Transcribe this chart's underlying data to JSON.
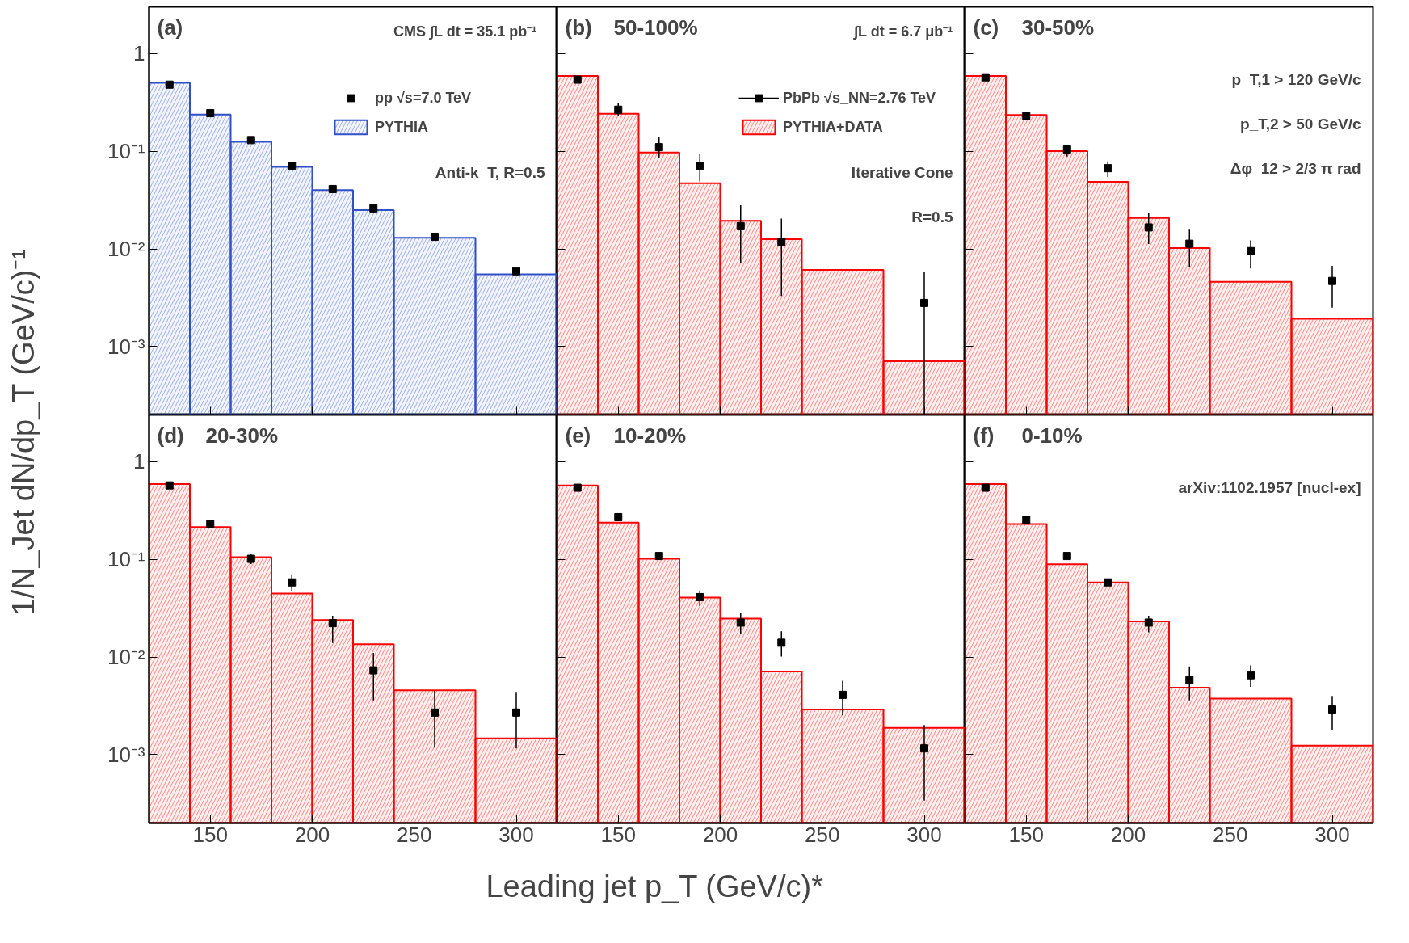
{
  "chart_data": [
    {
      "type": "histogram",
      "title": "(a)",
      "ylabel": "1/N_Jet dN/dp_T (GeV/c)⁻¹",
      "annotations": [
        "CMS   ∫L dt = 35.1 pb⁻¹",
        "Anti-k_T, R=0.5"
      ],
      "bins": [
        120,
        140,
        160,
        180,
        200,
        220,
        240,
        280,
        320
      ],
      "x": [
        130,
        150,
        170,
        190,
        210,
        230,
        260,
        300
      ],
      "series": [
        {
          "name": "pp √s=7.0 TeV",
          "type": "scatter",
          "color": "#000000",
          "values": [
            0.48,
            0.245,
            0.13,
            0.071,
            0.041,
            0.026,
            0.0133,
            0.0059
          ]
        },
        {
          "name": "PYTHIA",
          "color": "#3050c8",
          "values": [
            0.5,
            0.237,
            0.125,
            0.069,
            0.04,
            0.025,
            0.013,
            0.0055
          ]
        }
      ],
      "xlim": [
        120,
        320
      ],
      "ylim": [
        0.0002,
        3
      ],
      "xticks": [
        {
          "value": 150,
          "label": null
        },
        {
          "value": 200,
          "label": null
        },
        {
          "value": 250,
          "label": null
        },
        {
          "value": 300,
          "label": null
        }
      ],
      "yticks": [
        {
          "value": 0.001,
          "label": "10⁻³"
        },
        {
          "value": 0.01,
          "label": "10⁻²"
        },
        {
          "value": 0.1,
          "label": "10⁻¹"
        },
        1
      ],
      "log": true,
      "marker": "square",
      "legend": "top right",
      "tick_labels": "y"
    },
    {
      "type": "histogram",
      "title": "(b)",
      "subtitle": "50-100%",
      "annotations": [
        "∫L dt = 6.7 μb⁻¹",
        "Iterative Cone",
        "R=0.5"
      ],
      "bins": [
        120,
        140,
        160,
        180,
        200,
        220,
        240,
        280,
        320
      ],
      "x": [
        130,
        150,
        170,
        190,
        210,
        230,
        260,
        300
      ],
      "series": [
        {
          "name": "PbPb √s_NN=2.76 TeV",
          "type": "scatter",
          "color": "#000000",
          "values": [
            0.54,
            0.266,
            0.11,
            0.071,
            0.0171,
            0.0118,
            null,
            0.0028
          ],
          "errors": [
            null,
            [
              0.23,
              0.31
            ],
            [
              0.085,
              0.14
            ],
            [
              0.049,
              0.093
            ],
            [
              0.0072,
              0.028
            ],
            [
              0.0033,
              0.0204
            ],
            null,
            [
              0.0002,
              0.0058
            ]
          ]
        },
        {
          "name": "PYTHIA+DATA",
          "color": "#ff0000",
          "values": [
            0.59,
            0.242,
            0.097,
            0.047,
            0.0194,
            0.0126,
            0.0061,
            0.00071
          ]
        }
      ],
      "xlim": [
        120,
        320
      ],
      "ylim": [
        0.0002,
        3
      ],
      "xticks": [
        {
          "value": 150,
          "label": null
        },
        {
          "value": 200,
          "label": null
        },
        {
          "value": 250,
          "label": null
        },
        {
          "value": 300,
          "label": null
        }
      ],
      "yticks": [
        {
          "value": 0.001,
          "label": null
        },
        {
          "value": 0.01,
          "label": null
        },
        {
          "value": 0.1,
          "label": null
        },
        {
          "value": 1,
          "label": null
        }
      ],
      "log": true,
      "marker": "square",
      "legend": "top right",
      "tick_labels": false
    },
    {
      "type": "histogram",
      "title": "(c)",
      "subtitle": "30-50%",
      "annotations": [
        "p_T,1 > 120 GeV/c",
        "p_T,2 > 50 GeV/c",
        "Δφ_12 > 2/3 π rad"
      ],
      "bins": [
        120,
        140,
        160,
        180,
        200,
        220,
        240,
        280,
        320
      ],
      "x": [
        130,
        150,
        170,
        190,
        210,
        230,
        260,
        300
      ],
      "series": [
        {
          "type": "scatter",
          "color": "#000000",
          "values": [
            0.57,
            0.23,
            0.104,
            0.067,
            0.0166,
            0.0113,
            0.0095,
            0.0047
          ],
          "errors": [
            null,
            null,
            [
              0.088,
              0.117
            ],
            [
              0.0546,
              0.079
            ],
            [
              0.0112,
              0.0231
            ],
            [
              0.0065,
              0.0157
            ],
            [
              0.0063,
              0.0122
            ],
            [
              0.0025,
              0.0067
            ]
          ]
        },
        {
          "color": "#ff0000",
          "values": [
            0.59,
            0.235,
            0.1,
            0.0486,
            0.0207,
            0.0102,
            0.0046,
            0.00193
          ]
        }
      ],
      "xlim": [
        120,
        320
      ],
      "ylim": [
        0.0002,
        3
      ],
      "xticks": [
        {
          "value": 150,
          "label": null
        },
        {
          "value": 200,
          "label": null
        },
        {
          "value": 250,
          "label": null
        },
        {
          "value": 300,
          "label": null
        }
      ],
      "yticks": [
        {
          "value": 0.001,
          "label": null
        },
        {
          "value": 0.01,
          "label": null
        },
        {
          "value": 0.1,
          "label": null
        },
        {
          "value": 1,
          "label": null
        }
      ],
      "log": true,
      "marker": "square",
      "tick_labels": false
    },
    {
      "type": "histogram",
      "title": "(d)",
      "subtitle": "20-30%",
      "bins": [
        120,
        140,
        160,
        180,
        200,
        220,
        240,
        280,
        320
      ],
      "x": [
        130,
        150,
        170,
        190,
        210,
        230,
        260,
        300
      ],
      "series": [
        {
          "type": "scatter",
          "color": "#000000",
          "values": [
            0.57,
            0.23,
            0.101,
            0.058,
            0.0222,
            0.0073,
            0.0027,
            0.0027
          ],
          "errors": [
            null,
            null,
            [
              0.0895,
              0.113
            ],
            [
              0.047,
              0.07
            ],
            [
              0.0139,
              0.0264
            ],
            [
              0.0036,
              0.011
            ],
            [
              0.00118,
              0.0045
            ],
            [
              0.00116,
              0.0044
            ]
          ]
        },
        {
          "color": "#ff0000",
          "values": [
            0.59,
            0.214,
            0.105,
            0.0446,
            0.0239,
            0.0135,
            0.00457,
            0.00147
          ]
        }
      ],
      "xlim": [
        120,
        320
      ],
      "ylim": [
        0.0002,
        3
      ],
      "xticks": [
        150,
        200,
        250,
        300
      ],
      "yticks": [
        {
          "value": 0.001,
          "label": "10⁻³"
        },
        {
          "value": 0.01,
          "label": "10⁻²"
        },
        {
          "value": 0.1,
          "label": "10⁻¹"
        },
        1
      ],
      "log": true,
      "marker": "square"
    },
    {
      "type": "histogram",
      "title": "(e)",
      "subtitle": "10-20%",
      "xlabel": "Leading jet p_T (GeV/c)*",
      "bins": [
        120,
        140,
        160,
        180,
        200,
        220,
        240,
        280,
        320
      ],
      "x": [
        130,
        150,
        170,
        190,
        210,
        230,
        260,
        300
      ],
      "series": [
        {
          "type": "scatter",
          "color": "#000000",
          "values": [
            0.54,
            0.27,
            0.108,
            0.041,
            0.0225,
            0.014,
            0.0041,
            0.00116
          ],
          "errors": [
            null,
            null,
            null,
            [
              0.033,
              0.048
            ],
            [
              0.0171,
              0.0282
            ],
            [
              0.0101,
              0.0183
            ],
            [
              0.00253,
              0.0057
            ],
            [
              0.00034,
              0.00201
            ]
          ]
        },
        {
          "color": "#ff0000",
          "values": [
            0.57,
            0.237,
            0.101,
            0.0406,
            0.0247,
            0.0071,
            0.0029,
            0.00188
          ]
        }
      ],
      "xlim": [
        120,
        320
      ],
      "ylim": [
        0.0002,
        3
      ],
      "xticks": [
        150,
        200,
        250,
        300
      ],
      "yticks": [
        {
          "value": 0.001,
          "label": null
        },
        {
          "value": 0.01,
          "label": null
        },
        {
          "value": 0.1,
          "label": null
        },
        {
          "value": 1,
          "label": null
        }
      ],
      "log": true,
      "marker": "square",
      "tick_labels": "x"
    },
    {
      "type": "histogram",
      "title": "(f)",
      "subtitle": "0-10%",
      "annotations": [
        "arXiv:1102.1957 [nucl-ex]"
      ],
      "bins": [
        120,
        140,
        160,
        180,
        200,
        220,
        240,
        280,
        320
      ],
      "x": [
        130,
        150,
        170,
        190,
        210,
        230,
        260,
        300
      ],
      "series": [
        {
          "type": "scatter",
          "color": "#000000",
          "values": [
            0.54,
            0.252,
            0.108,
            0.058,
            0.0225,
            0.0058,
            0.0065,
            0.0029
          ],
          "errors": [
            null,
            null,
            null,
            null,
            [
              0.0179,
              0.0264
            ],
            [
              0.0036,
              0.008
            ],
            [
              0.00495,
              0.0082
            ],
            [
              0.0018,
              0.004
            ]
          ]
        },
        {
          "color": "#ff0000",
          "values": [
            0.59,
            0.229,
            0.089,
            0.058,
            0.0231,
            0.00485,
            0.00375,
            0.00124
          ]
        }
      ],
      "xlim": [
        120,
        320
      ],
      "ylim": [
        0.0002,
        3
      ],
      "xticks": [
        150,
        200,
        250,
        300
      ],
      "yticks": [
        {
          "value": 0.001,
          "label": null
        },
        {
          "value": 0.01,
          "label": null
        },
        {
          "value": 0.1,
          "label": null
        },
        {
          "value": 1,
          "label": null
        }
      ],
      "log": true,
      "marker": "square",
      "tick_labels": "x"
    }
  ]
}
